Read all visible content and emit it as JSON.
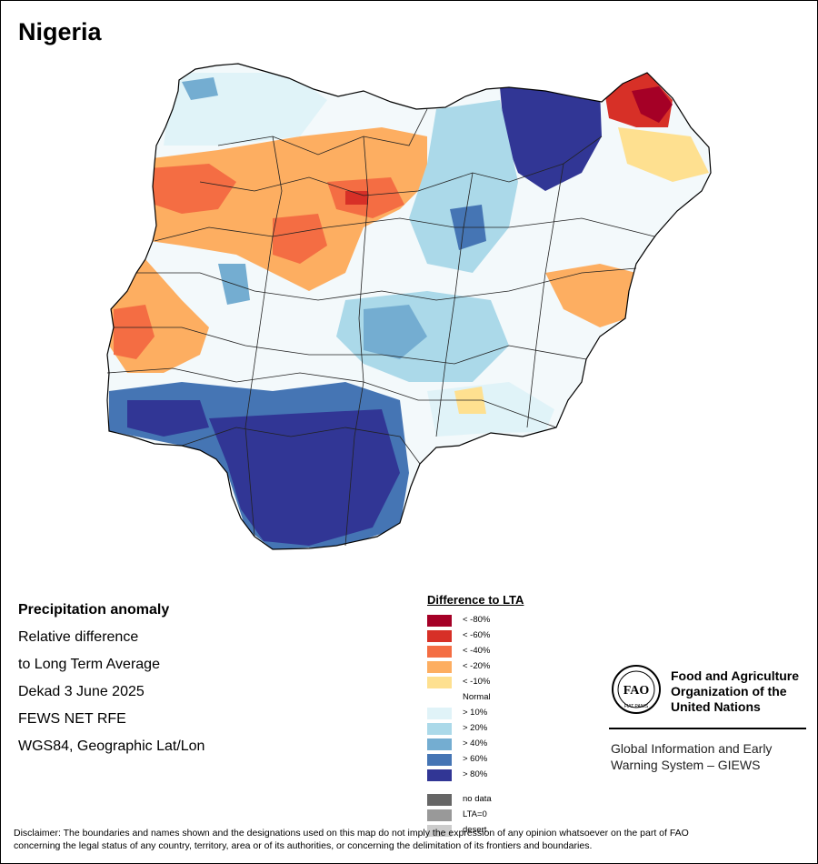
{
  "map": {
    "title": "Nigeria",
    "fill_colors": {
      "lt80": "#a50026",
      "lt60": "#d73027",
      "lt40": "#f46d43",
      "lt20": "#fdae61",
      "lt10": "#fee090",
      "normal": "#ffffff",
      "gt10": "#e0f3f8",
      "gt20": "#abd9e9",
      "gt40": "#74add1",
      "gt60": "#4575b4",
      "gt80": "#313695"
    }
  },
  "info": {
    "heading": "Precipitation anomaly",
    "line1": "Relative difference",
    "line2": "to Long Term Average",
    "period": "Dekad 3 June 2025",
    "source": "FEWS NET RFE",
    "projection": "WGS84, Geographic Lat/Lon"
  },
  "legend": {
    "title": "Difference to LTA",
    "dry": [
      {
        "label": "< -80%",
        "color": "#a50026"
      },
      {
        "label": "< -60%",
        "color": "#d73027"
      },
      {
        "label": "< -40%",
        "color": "#f46d43"
      },
      {
        "label": "< -20%",
        "color": "#fdae61"
      },
      {
        "label": "< -10%",
        "color": "#fee090"
      }
    ],
    "normal_label": "Normal",
    "wet": [
      {
        "label": "> 10%",
        "color": "#e0f3f8"
      },
      {
        "label": "> 20%",
        "color": "#abd9e9"
      },
      {
        "label": "> 40%",
        "color": "#74add1"
      },
      {
        "label": "> 60%",
        "color": "#4575b4"
      },
      {
        "label": "> 80%",
        "color": "#313695"
      }
    ],
    "other": [
      {
        "label": "no data",
        "color": "#666666"
      },
      {
        "label": "LTA=0",
        "color": "#999999"
      },
      {
        "label": "desert",
        "color": "#cccccc"
      }
    ]
  },
  "organization": {
    "name_line1": "Food and Agriculture",
    "name_line2": "Organization of the",
    "name_line3": "United Nations",
    "logo_letters": "FAO",
    "logo_motto": "FIAT PANIS",
    "system_line1": "Global Information and Early",
    "system_line2": "Warning System – GIEWS"
  },
  "disclaimer": {
    "line1": "Disclaimer: The boundaries and names shown and the designations used on this map do not imply the expression of any opinion whatsoever on the part of FAO",
    "line2": "concerning the legal status of any country, territory, area or of its authorities, or concerning the delimitation of its frontiers and boundaries."
  }
}
